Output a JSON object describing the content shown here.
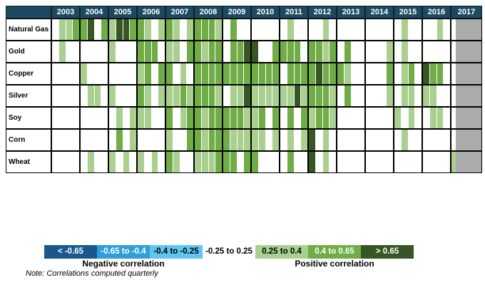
{
  "palette": {
    "B1": "#19588C",
    "B2": "#2E9FD8",
    "B3": "#5FC5F1",
    "W": "#FFFFFF",
    "L": "#A9D08E",
    "M": "#70AD47",
    "D": "#375623",
    "GRAY": "#ABABAB",
    "HEADER": "#1E4A61"
  },
  "legend": {
    "segments": [
      {
        "label": "< -0.65",
        "code": "B1",
        "text_color": "#FFFFFF"
      },
      {
        "label": "-0.65 to -0.4",
        "code": "B2",
        "text_color": "#FFFFFF"
      },
      {
        "label": "-0.4 to -0.25",
        "code": "B3",
        "text_color": "#000000"
      },
      {
        "label": "-0.25 to 0.25",
        "code": "W",
        "text_color": "#000000"
      },
      {
        "label": "0.25 to 0.4",
        "code": "L",
        "text_color": "#000000"
      },
      {
        "label": "0.4 to 0.65",
        "code": "M",
        "text_color": "#FFFFFF"
      },
      {
        "label": "> 0.65",
        "code": "D",
        "text_color": "#FFFFFF"
      }
    ],
    "negative_label": "Negative correlation",
    "positive_label": "Positive correlation"
  },
  "note": "Note:  Correlations computed quarterly",
  "chart_data": {
    "type": "heatmap",
    "description": "Quarterly correlation heatmap of commodities vs years; cell codes map to correlation bins via legend",
    "code_bins": {
      "B1": "< -0.65",
      "B2": "-0.65 to -0.4",
      "B3": "-0.4 to -0.25",
      "W": "-0.25 to 0.25",
      "L": "0.25 to 0.4",
      "M": "0.4 to 0.65",
      "D": "> 0.65",
      "GRAY": "no data"
    },
    "years": [
      "2003",
      "2004",
      "2005",
      "2006",
      "2007",
      "2008",
      "2009",
      "2010",
      "2011",
      "2012",
      "2013",
      "2014",
      "2015",
      "2016",
      "2017"
    ],
    "quarters_per_year": 4,
    "note_2017": "2017 shows only a thin Q1 cell followed by gray no-data fill",
    "rows": [
      {
        "name": "Natural Gas",
        "cells": [
          "WLLM",
          "MDWM",
          "LDDM",
          "MLWL",
          "MLWL",
          "MMML",
          "WMWW",
          "WWWW",
          "WLWW",
          "WWLW",
          "WWWW",
          "WWWW",
          "WLWW",
          "WWLW"
        ],
        "y2017_q1": "W"
      },
      {
        "name": "Gold",
        "cells": [
          "WLWW",
          "WWWW",
          "LWWW",
          "MMMW",
          "LLWM",
          "MLMM",
          "WMMD",
          "DWWM",
          "MMMW",
          "MMLM",
          "WMWW",
          "WWWL",
          "WLWW",
          "WWWW"
        ],
        "y2017_q1": "W"
      },
      {
        "name": "Copper",
        "cells": [
          "WWWW",
          "LWWW",
          "WWWW",
          "LMWM",
          "MWLW",
          "MMMM",
          "MMMM",
          "MMMM",
          "WMMM",
          "MDMM",
          "MLWW",
          "WWWM",
          "WLMW",
          "DMMW"
        ],
        "y2017_q1": "W"
      },
      {
        "name": "Silver",
        "cells": [
          "WWWW",
          "WLLW",
          "LWWW",
          "MLWL",
          "LLML",
          "MMML",
          "WLLD",
          "LLLL",
          "LLDL",
          "MMML",
          "WMWW",
          "WWWL",
          "WLLW",
          "LLWW"
        ],
        "y2017_q1": "W"
      },
      {
        "name": "Soy",
        "cells": [
          "WWWW",
          "WWWW",
          "WLWL",
          "LLWW",
          "MWLM",
          "MLMM",
          "MMML",
          "LMWM",
          "WMWM",
          "LMML",
          "WWWW",
          "WWWW",
          "LWLW",
          "WLLW"
        ],
        "y2017_q1": "W"
      },
      {
        "name": "Corn",
        "cells": [
          "WWWW",
          "WWWW",
          "WMWL",
          "WWWW",
          "LWWM",
          "MLMM",
          "MLLL",
          "LLWL",
          "WLWL",
          "DWLW",
          "WWWW",
          "WWWW",
          "WLWW",
          "WWWW"
        ],
        "y2017_q1": "W"
      },
      {
        "name": "Wheat",
        "cells": [
          "WWWW",
          "WLWW",
          "LWLW",
          "LWLW",
          "MLWW",
          "LLLM",
          "MMWM",
          "MWWW",
          "WMWW",
          "DWLW",
          "WWWW",
          "WWWW",
          "WWWW",
          "WWWW"
        ],
        "y2017_q1": "L"
      }
    ]
  }
}
